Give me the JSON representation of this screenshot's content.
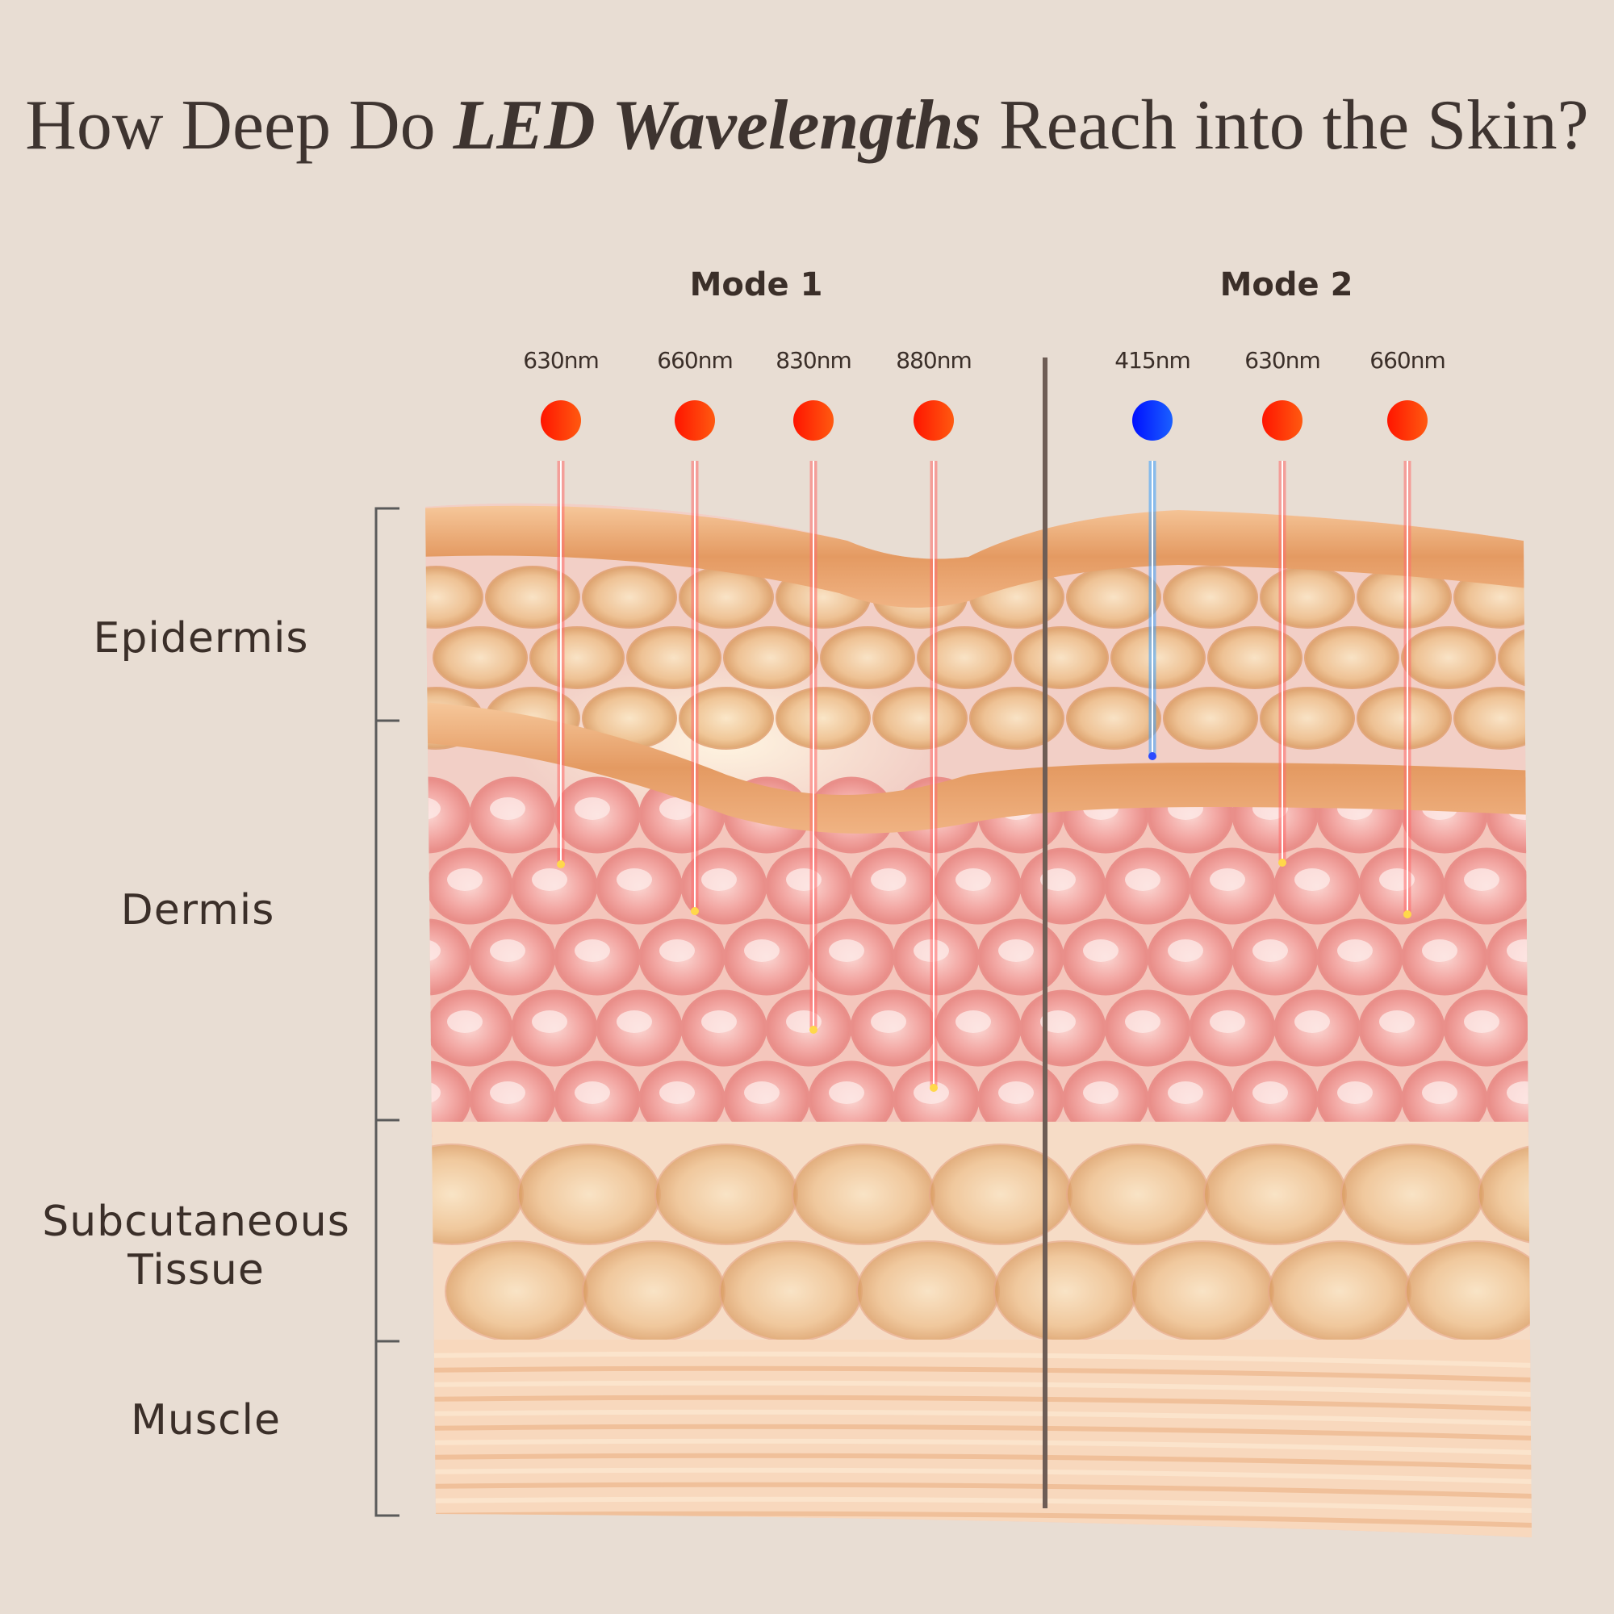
{
  "title": {
    "prefix": "How Deep Do ",
    "emphasis": "LED Wavelengths",
    "suffix": " Reach into the Skin?"
  },
  "modes": [
    {
      "label": "Mode 1",
      "leds": [
        {
          "wavelength": "630nm",
          "color": "#ff3a10",
          "depth_layer": "Dermis"
        },
        {
          "wavelength": "660nm",
          "color": "#ff3a10",
          "depth_layer": "Dermis"
        },
        {
          "wavelength": "830nm",
          "color": "#ff3a10",
          "depth_layer": "Dermis"
        },
        {
          "wavelength": "880nm",
          "color": "#ff3a10",
          "depth_layer": "Dermis"
        }
      ]
    },
    {
      "label": "Mode 2",
      "leds": [
        {
          "wavelength": "415nm",
          "color": "#0a2bff",
          "depth_layer": "Epidermis"
        },
        {
          "wavelength": "630nm",
          "color": "#ff3a10",
          "depth_layer": "Dermis"
        },
        {
          "wavelength": "660nm",
          "color": "#ff3a10",
          "depth_layer": "Dermis"
        }
      ]
    }
  ],
  "layers": [
    "Epidermis",
    "Dermis",
    "Subcutaneous",
    "Tissue",
    "Muscle"
  ],
  "colors": {
    "background": "#e8ddd3",
    "text": "#3b2f29",
    "divider": "#6e5d55",
    "red_led": "#ff3a10",
    "blue_led": "#0a2bff"
  }
}
